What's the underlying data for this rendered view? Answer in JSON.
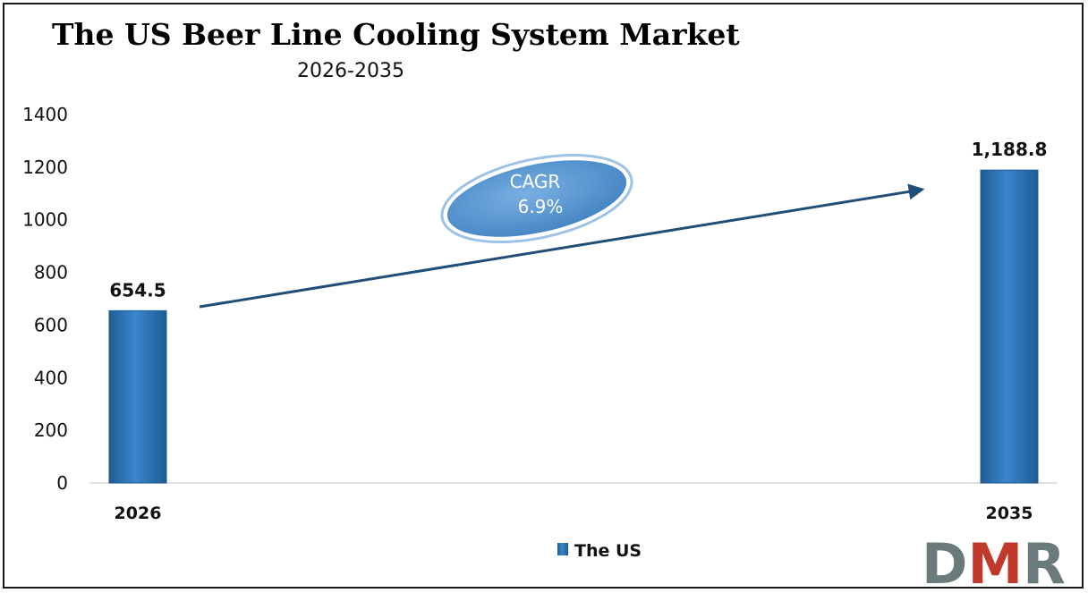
{
  "chart_data": {
    "type": "bar",
    "title": "The US Beer Line Cooling System Market",
    "subtitle": "2026-2035",
    "categories": [
      "2026",
      "2035"
    ],
    "series": [
      {
        "name": "The US",
        "values": [
          654.5,
          1188.8
        ],
        "data_labels": [
          "654.5",
          "1,188.8"
        ]
      }
    ],
    "ylim": [
      0,
      1400
    ],
    "y_ticks": [
      "0",
      "200",
      "400",
      "600",
      "800",
      "1000",
      "1200",
      "1400"
    ],
    "y_tick_values": [
      0,
      200,
      400,
      600,
      800,
      1000,
      1200,
      1400
    ],
    "grid": false,
    "legend_position": "bottom",
    "annotation": {
      "label": "CAGR",
      "value": "6.9%"
    },
    "colors": {
      "bar": "#2E75B6",
      "bar_dark": "#1F5C94",
      "arrow": "#1F4E79",
      "ellipse": "#5B9BD5"
    }
  },
  "logo": {
    "text": "DMR",
    "colors": {
      "d": "#6b7b7b",
      "m": "#c0392b",
      "r": "#6b7b7b"
    }
  }
}
